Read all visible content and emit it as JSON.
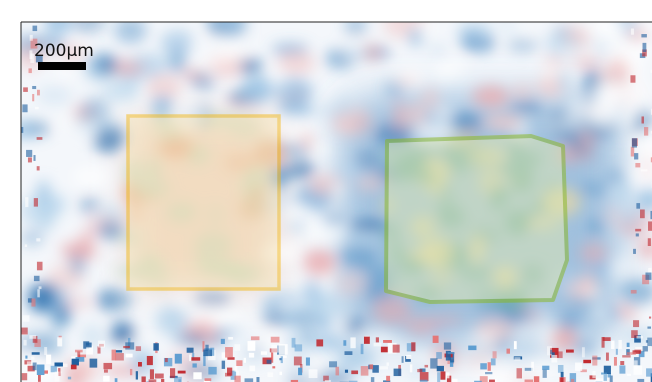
{
  "scale_bar": {
    "label": "200µm"
  }
}
